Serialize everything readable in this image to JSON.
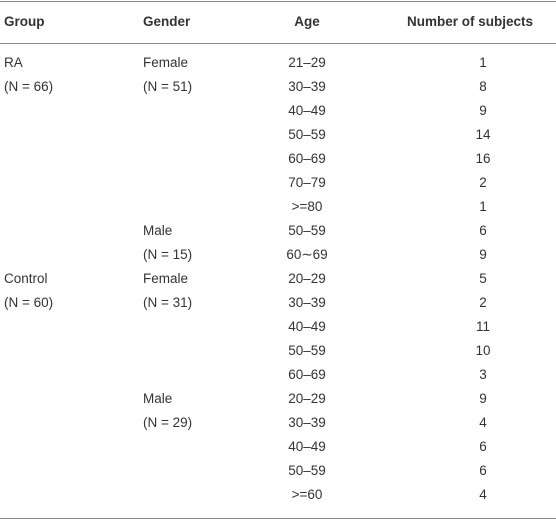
{
  "table": {
    "header": [
      "Group",
      "Gender",
      "Age",
      "Number of subjects"
    ],
    "rows": [
      [
        "RA",
        "Female",
        "21–29",
        1
      ],
      [
        "(N = 66)",
        "(N = 51)",
        "30–39",
        8
      ],
      [
        null,
        null,
        "40–49",
        9
      ],
      [
        null,
        null,
        "50–59",
        14
      ],
      [
        null,
        null,
        "60–69",
        16
      ],
      [
        null,
        null,
        "70–79",
        2
      ],
      [
        null,
        null,
        ">=80",
        1
      ],
      [
        null,
        "Male",
        "50–59",
        6
      ],
      [
        null,
        "(N = 15)",
        "60∼69",
        9
      ],
      [
        "Control",
        "Female",
        "20–29",
        5
      ],
      [
        "(N = 60)",
        "(N = 31)",
        "30–39",
        2
      ],
      [
        null,
        null,
        "40–49",
        11
      ],
      [
        null,
        null,
        "50–59",
        10
      ],
      [
        null,
        null,
        "60–69",
        3
      ],
      [
        null,
        "Male",
        "20–29",
        9
      ],
      [
        null,
        "(N = 29)",
        "30–39",
        4
      ],
      [
        null,
        null,
        "40–49",
        6
      ],
      [
        null,
        null,
        "50–59",
        6
      ],
      [
        null,
        null,
        ">=60",
        4
      ]
    ]
  }
}
